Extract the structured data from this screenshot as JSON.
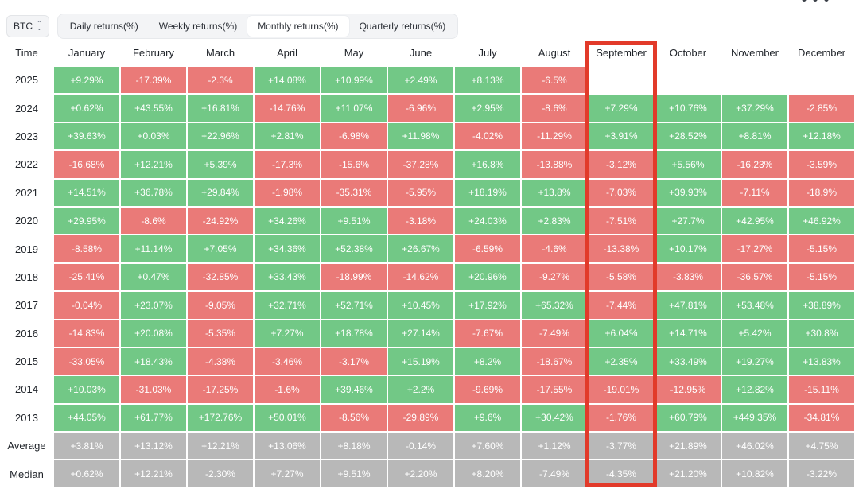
{
  "coin_select": {
    "value": "BTC"
  },
  "tabs": [
    {
      "label": "Daily returns(%)",
      "active": false
    },
    {
      "label": "Weekly returns(%)",
      "active": false
    },
    {
      "label": "Monthly returns(%)",
      "active": true
    },
    {
      "label": "Quarterly returns(%)",
      "active": false
    }
  ],
  "colors": {
    "positive": "#72c886",
    "negative": "#ea7a78",
    "summary": "#b8b8b8",
    "highlight": "#e23a2a"
  },
  "table": {
    "corner_label": "Time",
    "columns": [
      "January",
      "February",
      "March",
      "April",
      "May",
      "June",
      "July",
      "August",
      "September",
      "October",
      "November",
      "December"
    ],
    "highlighted_column": "September",
    "rows": [
      {
        "label": "2025",
        "type": "year",
        "values": [
          "+9.29%",
          "-17.39%",
          "-2.3%",
          "+14.08%",
          "+10.99%",
          "+2.49%",
          "+8.13%",
          "-6.5%",
          "",
          "",
          "",
          ""
        ]
      },
      {
        "label": "2024",
        "type": "year",
        "values": [
          "+0.62%",
          "+43.55%",
          "+16.81%",
          "-14.76%",
          "+11.07%",
          "-6.96%",
          "+2.95%",
          "-8.6%",
          "+7.29%",
          "+10.76%",
          "+37.29%",
          "-2.85%"
        ]
      },
      {
        "label": "2023",
        "type": "year",
        "values": [
          "+39.63%",
          "+0.03%",
          "+22.96%",
          "+2.81%",
          "-6.98%",
          "+11.98%",
          "-4.02%",
          "-11.29%",
          "+3.91%",
          "+28.52%",
          "+8.81%",
          "+12.18%"
        ]
      },
      {
        "label": "2022",
        "type": "year",
        "values": [
          "-16.68%",
          "+12.21%",
          "+5.39%",
          "-17.3%",
          "-15.6%",
          "-37.28%",
          "+16.8%",
          "-13.88%",
          "-3.12%",
          "+5.56%",
          "-16.23%",
          "-3.59%"
        ]
      },
      {
        "label": "2021",
        "type": "year",
        "values": [
          "+14.51%",
          "+36.78%",
          "+29.84%",
          "-1.98%",
          "-35.31%",
          "-5.95%",
          "+18.19%",
          "+13.8%",
          "-7.03%",
          "+39.93%",
          "-7.11%",
          "-18.9%"
        ]
      },
      {
        "label": "2020",
        "type": "year",
        "values": [
          "+29.95%",
          "-8.6%",
          "-24.92%",
          "+34.26%",
          "+9.51%",
          "-3.18%",
          "+24.03%",
          "+2.83%",
          "-7.51%",
          "+27.7%",
          "+42.95%",
          "+46.92%"
        ]
      },
      {
        "label": "2019",
        "type": "year",
        "values": [
          "-8.58%",
          "+11.14%",
          "+7.05%",
          "+34.36%",
          "+52.38%",
          "+26.67%",
          "-6.59%",
          "-4.6%",
          "-13.38%",
          "+10.17%",
          "-17.27%",
          "-5.15%"
        ]
      },
      {
        "label": "2018",
        "type": "year",
        "values": [
          "-25.41%",
          "+0.47%",
          "-32.85%",
          "+33.43%",
          "-18.99%",
          "-14.62%",
          "+20.96%",
          "-9.27%",
          "-5.58%",
          "-3.83%",
          "-36.57%",
          "-5.15%"
        ]
      },
      {
        "label": "2017",
        "type": "year",
        "values": [
          "-0.04%",
          "+23.07%",
          "-9.05%",
          "+32.71%",
          "+52.71%",
          "+10.45%",
          "+17.92%",
          "+65.32%",
          "-7.44%",
          "+47.81%",
          "+53.48%",
          "+38.89%"
        ]
      },
      {
        "label": "2016",
        "type": "year",
        "values": [
          "-14.83%",
          "+20.08%",
          "-5.35%",
          "+7.27%",
          "+18.78%",
          "+27.14%",
          "-7.67%",
          "-7.49%",
          "+6.04%",
          "+14.71%",
          "+5.42%",
          "+30.8%"
        ]
      },
      {
        "label": "2015",
        "type": "year",
        "values": [
          "-33.05%",
          "+18.43%",
          "-4.38%",
          "-3.46%",
          "-3.17%",
          "+15.19%",
          "+8.2%",
          "-18.67%",
          "+2.35%",
          "+33.49%",
          "+19.27%",
          "+13.83%"
        ]
      },
      {
        "label": "2014",
        "type": "year",
        "values": [
          "+10.03%",
          "-31.03%",
          "-17.25%",
          "-1.6%",
          "+39.46%",
          "+2.2%",
          "-9.69%",
          "-17.55%",
          "-19.01%",
          "-12.95%",
          "+12.82%",
          "-15.11%"
        ]
      },
      {
        "label": "2013",
        "type": "year",
        "values": [
          "+44.05%",
          "+61.77%",
          "+172.76%",
          "+50.01%",
          "-8.56%",
          "-29.89%",
          "+9.6%",
          "+30.42%",
          "-1.76%",
          "+60.79%",
          "+449.35%",
          "-34.81%"
        ]
      },
      {
        "label": "Average",
        "type": "summary",
        "values": [
          "+3.81%",
          "+13.12%",
          "+12.21%",
          "+13.06%",
          "+8.18%",
          "-0.14%",
          "+7.60%",
          "+1.12%",
          "-3.77%",
          "+21.89%",
          "+46.02%",
          "+4.75%"
        ]
      },
      {
        "label": "Median",
        "type": "summary",
        "values": [
          "+0.62%",
          "+12.21%",
          "-2.30%",
          "+7.27%",
          "+9.51%",
          "+2.20%",
          "+8.20%",
          "-7.49%",
          "-4.35%",
          "+21.20%",
          "+10.82%",
          "-3.22%"
        ]
      }
    ]
  }
}
